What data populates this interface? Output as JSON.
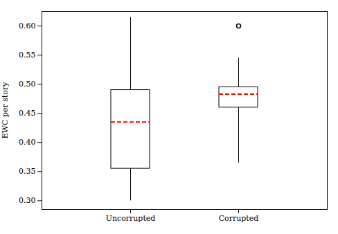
{
  "chart_data": {
    "type": "box",
    "categories": [
      "Uncorrupted",
      "Corrupted"
    ],
    "boxes": [
      {
        "q1": 0.355,
        "median": 0.435,
        "q3": 0.49,
        "whisker_low": 0.3,
        "whisker_high": 0.615,
        "outliers": []
      },
      {
        "q1": 0.46,
        "median": 0.483,
        "q3": 0.495,
        "whisker_low": 0.365,
        "whisker_high": 0.545,
        "outliers": [
          0.6
        ]
      }
    ],
    "ylabel": "EWC per story",
    "ylim": [
      0.285,
      0.625
    ],
    "yticks": [
      {
        "value": 0.3,
        "label": "0.30"
      },
      0.35,
      {
        "value": 0.4,
        "label": "0.40"
      },
      0.45,
      {
        "value": 0.5,
        "label": "0.50"
      },
      0.55,
      {
        "value": 0.6,
        "label": "0.60"
      }
    ],
    "color": "#000000",
    "median_line": {
      "color": "#ff0000",
      "line_style": "dashed"
    },
    "marker": "circle",
    "grid": false,
    "legend": false
  }
}
